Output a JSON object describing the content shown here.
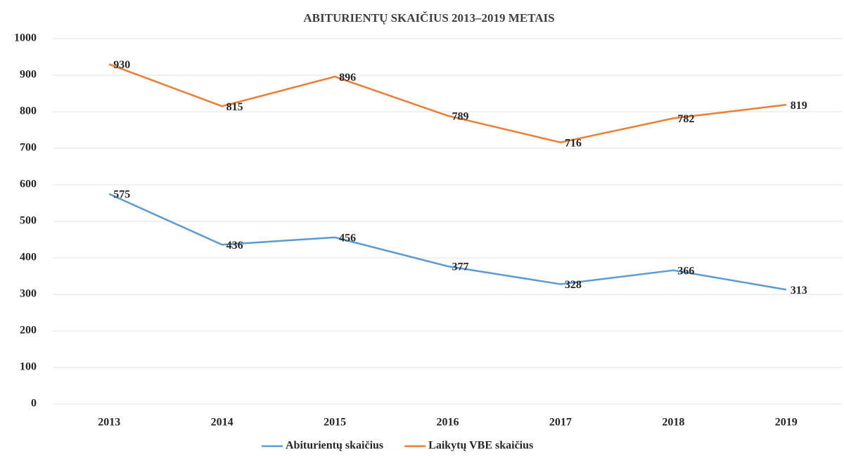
{
  "chart_data": {
    "type": "line",
    "title": "ABITURIENTŲ SKAIČIUS 2013–2019 METAIS",
    "categories": [
      "2013",
      "2014",
      "2015",
      "2016",
      "2017",
      "2018",
      "2019"
    ],
    "series": [
      {
        "name": "Abiturientų skaičius",
        "color": "#5b9bd5",
        "values": [
          575,
          436,
          456,
          377,
          328,
          366,
          313
        ]
      },
      {
        "name": "Laikytų VBE skaičius",
        "color": "#ed7d31",
        "values": [
          930,
          815,
          896,
          789,
          716,
          782,
          819
        ]
      }
    ],
    "ylim": [
      0,
      1000
    ],
    "yticks": [
      0,
      100,
      200,
      300,
      400,
      500,
      600,
      700,
      800,
      900,
      1000
    ],
    "grid": true,
    "legend": "bottom"
  }
}
